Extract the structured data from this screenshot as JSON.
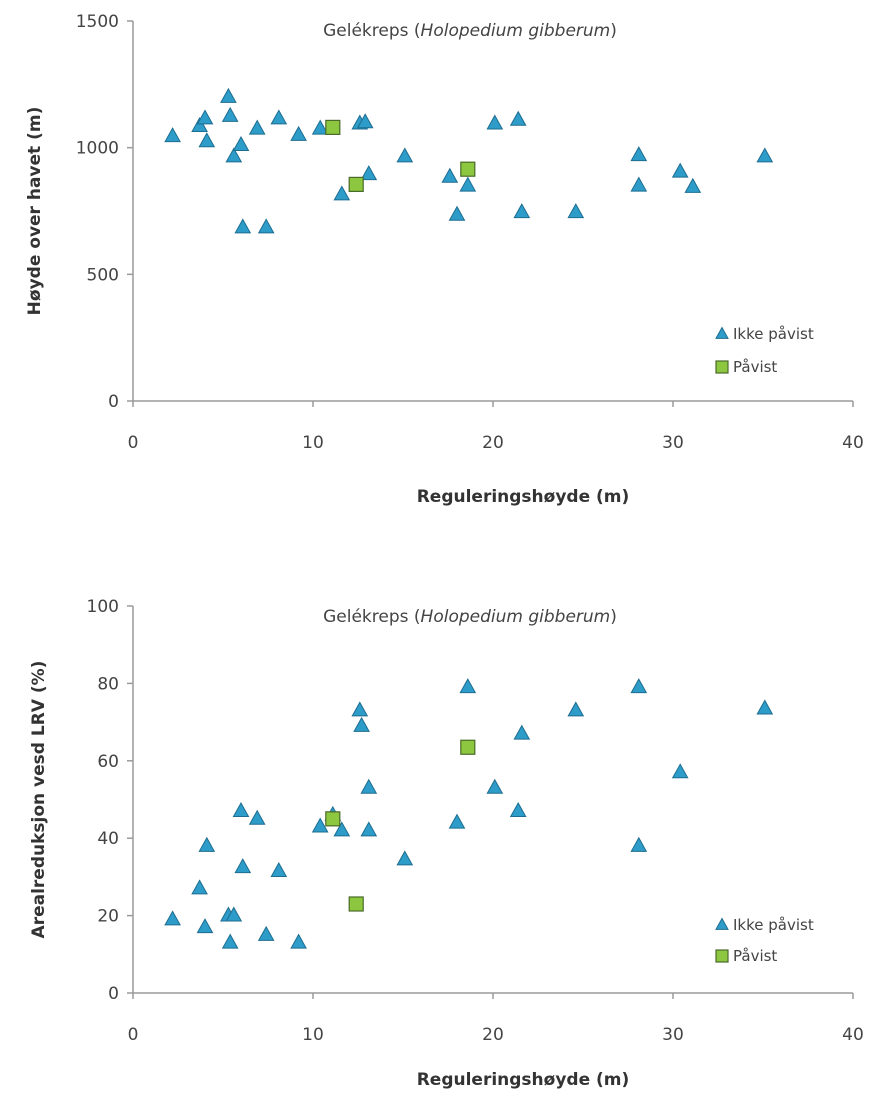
{
  "chart_data": [
    {
      "type": "scatter",
      "title_main": "Gelékreps (",
      "title_italic": "Holopedium gibberum",
      "title_end": ")",
      "xlabel": "Reguleringshøyde (m)",
      "ylabel": "Høyde over havet (m)",
      "xlim": [
        0,
        40
      ],
      "ylim": [
        0,
        1500
      ],
      "xticks": [
        "0",
        "10",
        "20",
        "30",
        "40"
      ],
      "yticks": [
        "0",
        "500",
        "1000",
        "1500"
      ],
      "legend_position": "bottom-right",
      "series": [
        {
          "name": "Ikke påvist",
          "marker": "triangle",
          "color": "#2E9CC8",
          "points": [
            [
              2.2,
              1045
            ],
            [
              3.7,
              1085
            ],
            [
              4.0,
              1115
            ],
            [
              4.1,
              1025
            ],
            [
              5.3,
              1200
            ],
            [
              5.4,
              1125
            ],
            [
              5.6,
              965
            ],
            [
              6.0,
              1010
            ],
            [
              6.1,
              685
            ],
            [
              6.9,
              1075
            ],
            [
              7.4,
              685
            ],
            [
              8.1,
              1115
            ],
            [
              9.2,
              1050
            ],
            [
              10.4,
              1075
            ],
            [
              11.6,
              815
            ],
            [
              12.6,
              1095
            ],
            [
              12.9,
              1100
            ],
            [
              13.1,
              895
            ],
            [
              15.1,
              965
            ],
            [
              17.6,
              885
            ],
            [
              18.0,
              735
            ],
            [
              18.6,
              850
            ],
            [
              20.1,
              1095
            ],
            [
              21.4,
              1110
            ],
            [
              21.6,
              745
            ],
            [
              24.6,
              745
            ],
            [
              28.1,
              970
            ],
            [
              28.1,
              850
            ],
            [
              30.4,
              905
            ],
            [
              31.1,
              845
            ],
            [
              35.1,
              965
            ]
          ]
        },
        {
          "name": "Påvist",
          "marker": "square",
          "color": "#8DC63F",
          "points": [
            [
              11.1,
              1080
            ],
            [
              12.4,
              855
            ],
            [
              18.6,
              915
            ]
          ]
        }
      ]
    },
    {
      "type": "scatter",
      "title_main": "Gelékreps (",
      "title_italic": "Holopedium gibberum",
      "title_end": ")",
      "xlabel": "Reguleringshøyde (m)",
      "ylabel": "Arealreduksjon vesd LRV (%)",
      "xlim": [
        0,
        40
      ],
      "ylim": [
        0,
        100
      ],
      "xticks": [
        "0",
        "10",
        "20",
        "30",
        "40"
      ],
      "yticks": [
        "0",
        "20",
        "40",
        "60",
        "80",
        "100"
      ],
      "legend_position": "bottom-right",
      "series": [
        {
          "name": "Ikke påvist",
          "marker": "triangle",
          "color": "#2E9CC8",
          "points": [
            [
              2.2,
              19
            ],
            [
              3.7,
              27
            ],
            [
              4.0,
              17
            ],
            [
              4.1,
              38
            ],
            [
              5.3,
              20
            ],
            [
              5.4,
              13
            ],
            [
              5.6,
              20
            ],
            [
              6.0,
              47
            ],
            [
              6.1,
              32.5
            ],
            [
              6.9,
              45
            ],
            [
              7.4,
              15
            ],
            [
              8.1,
              31.5
            ],
            [
              9.2,
              13
            ],
            [
              10.4,
              43
            ],
            [
              11.1,
              46
            ],
            [
              11.6,
              42
            ],
            [
              12.6,
              73
            ],
            [
              12.7,
              69
            ],
            [
              13.1,
              53
            ],
            [
              13.1,
              42
            ],
            [
              15.1,
              34.5
            ],
            [
              18.0,
              44
            ],
            [
              18.6,
              79
            ],
            [
              20.1,
              53
            ],
            [
              21.4,
              47
            ],
            [
              21.6,
              67
            ],
            [
              24.6,
              73
            ],
            [
              28.1,
              79
            ],
            [
              28.1,
              38
            ],
            [
              30.4,
              57
            ],
            [
              35.1,
              73.5
            ]
          ]
        },
        {
          "name": "Påvist",
          "marker": "square",
          "color": "#8DC63F",
          "points": [
            [
              11.1,
              45
            ],
            [
              12.4,
              23
            ],
            [
              18.6,
              63.5
            ]
          ]
        }
      ]
    }
  ]
}
